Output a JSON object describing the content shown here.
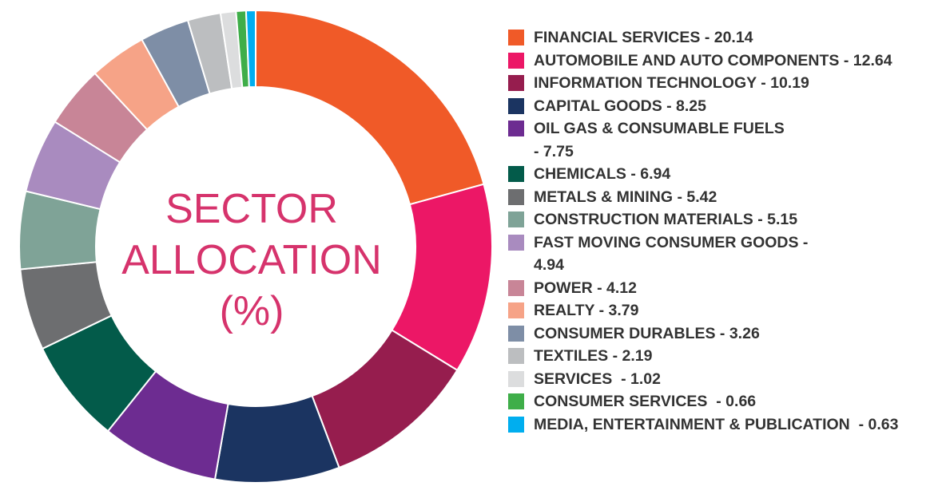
{
  "chart_data": {
    "type": "pie",
    "variant": "donut",
    "title_lines": [
      "SECTOR",
      "ALLOCATION",
      "(%)"
    ],
    "title_color": "#d6336c",
    "legend_position": "right",
    "slices": [
      {
        "label": "FINANCIAL SERVICES",
        "value": 20.14,
        "color": "#f05a28",
        "legend_text": "FINANCIAL SERVICES - 20.14"
      },
      {
        "label": "AUTOMOBILE AND AUTO COMPONENTS",
        "value": 12.64,
        "color": "#ec1766",
        "legend_text": "AUTOMOBILE AND AUTO COMPONENTS - 12.64"
      },
      {
        "label": "INFORMATION TECHNOLOGY",
        "value": 10.19,
        "color": "#961d4e",
        "legend_text": "INFORMATION TECHNOLOGY - 10.19"
      },
      {
        "label": "CAPITAL GOODS",
        "value": 8.25,
        "color": "#1b3461",
        "legend_text": "CAPITAL GOODS - 8.25"
      },
      {
        "label": "OIL GAS & CONSUMABLE FUELS",
        "value": 7.75,
        "color": "#6d2c91",
        "legend_text": "OIL GAS & CONSUMABLE FUELS\n- 7.75"
      },
      {
        "label": "CHEMICALS",
        "value": 6.94,
        "color": "#035b4a",
        "legend_text": "CHEMICALS - 6.94"
      },
      {
        "label": "METALS & MINING",
        "value": 5.42,
        "color": "#6d6e70",
        "legend_text": "METALS & MINING - 5.42"
      },
      {
        "label": "CONSTRUCTION MATERIALS",
        "value": 5.15,
        "color": "#7fa397",
        "legend_text": "CONSTRUCTION MATERIALS - 5.15"
      },
      {
        "label": "FAST MOVING CONSUMER GOODS",
        "value": 4.94,
        "color": "#a98bbf",
        "legend_text": "FAST MOVING CONSUMER GOODS -\n4.94"
      },
      {
        "label": "POWER",
        "value": 4.12,
        "color": "#c88597",
        "legend_text": "POWER - 4.12"
      },
      {
        "label": "REALTY",
        "value": 3.79,
        "color": "#f6a387",
        "legend_text": "REALTY - 3.79"
      },
      {
        "label": "CONSUMER DURABLES",
        "value": 3.26,
        "color": "#7e8ea6",
        "legend_text": "CONSUMER DURABLES - 3.26"
      },
      {
        "label": "TEXTILES",
        "value": 2.19,
        "color": "#bcbec0",
        "legend_text": "TEXTILES - 2.19"
      },
      {
        "label": "SERVICES",
        "value": 1.02,
        "color": "#dcddde",
        "legend_text": "SERVICES  - 1.02"
      },
      {
        "label": "CONSUMER SERVICES",
        "value": 0.66,
        "color": "#3fae49",
        "legend_text": "CONSUMER SERVICES  - 0.66"
      },
      {
        "label": "MEDIA, ENTERTAINMENT & PUBLICATION",
        "value": 0.63,
        "color": "#00aeef",
        "legend_text": "MEDIA, ENTERTAINMENT & PUBLICATION  - 0.63"
      }
    ]
  }
}
